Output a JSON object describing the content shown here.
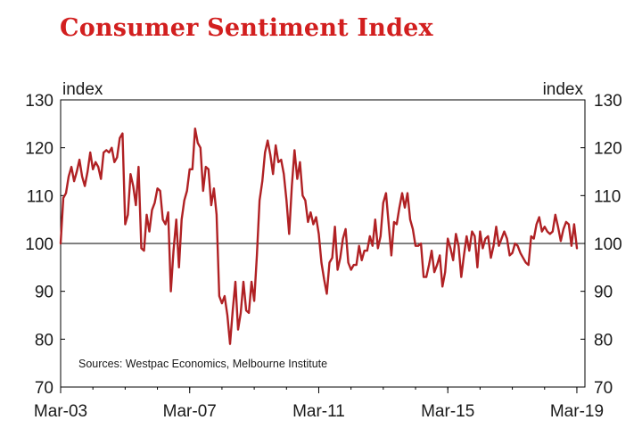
{
  "title": "Consumer Sentiment Index",
  "chart_data": {
    "type": "line",
    "title": "Consumer Sentiment Index",
    "ylabel_left": "index",
    "ylabel_right": "index",
    "ylim": [
      70,
      130
    ],
    "yticks": [
      70,
      80,
      90,
      100,
      110,
      120,
      130
    ],
    "xlim": [
      "2003-03",
      "2019-06"
    ],
    "xtick_labels": [
      "Mar-03",
      "Mar-07",
      "Mar-11",
      "Mar-15",
      "Mar-19"
    ],
    "xtick_values": [
      "2003-03",
      "2007-03",
      "2011-03",
      "2015-03",
      "2019-03"
    ],
    "reference_line": 100,
    "source_note": "Sources: Westpac Economics, Melbourne Institute",
    "grid": false,
    "colors": {
      "series": "#b02124",
      "title": "#d21f1f",
      "axis": "#000000"
    },
    "series": [
      {
        "x_start": "2003-03",
        "frequency": "monthly",
        "values": [
          100,
          109.5,
          110.5,
          114,
          116,
          113,
          115,
          117.5,
          114,
          112,
          115,
          119,
          115.5,
          117,
          116,
          113.5,
          119,
          119.5,
          119,
          120,
          117,
          118,
          122,
          123,
          104,
          106,
          114.5,
          112,
          108,
          116,
          99,
          98.5,
          106,
          102.5,
          107,
          108.5,
          111.5,
          111,
          105,
          104,
          106.5,
          90,
          98.5,
          105,
          95,
          105,
          109,
          111,
          115.5,
          115.5,
          124,
          121,
          120,
          111,
          116,
          115.5,
          108,
          111.5,
          106,
          89,
          87.5,
          89,
          85,
          79,
          86,
          92,
          82,
          85.5,
          92,
          86,
          85.5,
          92,
          88,
          97.5,
          109,
          113,
          119,
          121.5,
          118.5,
          114.5,
          120.5,
          117,
          117.5,
          114.5,
          109,
          102,
          112,
          119.5,
          113.5,
          117,
          110,
          109,
          104.5,
          106.5,
          104,
          105.5,
          102,
          96,
          92.5,
          89.5,
          96,
          97,
          103.5,
          94.5,
          97,
          101,
          103,
          96,
          94.5,
          95.5,
          95.5,
          99.5,
          96.5,
          98.5,
          98.5,
          101.5,
          99.5,
          105,
          99,
          101.5,
          108.5,
          110.5,
          104,
          97.5,
          104.5,
          104,
          107.5,
          110.5,
          107.5,
          110.5,
          105,
          103,
          99.5,
          99.5,
          100,
          93,
          93,
          95.5,
          98.5,
          94,
          95.5,
          97.5,
          91,
          94,
          101,
          99,
          96.5,
          102,
          99.5,
          93,
          97.5,
          101.5,
          98.5,
          102.5,
          101.5,
          95,
          102.5,
          99,
          101,
          101.5,
          97,
          99.5,
          103.5,
          99.5,
          101,
          102.5,
          101,
          97.5,
          98,
          100,
          99.5,
          98,
          97,
          96,
          95.5,
          101.5,
          101,
          104,
          105.5,
          102.5,
          103.5,
          102.5,
          102,
          102.5,
          106,
          103.5,
          100.5,
          103,
          104.5,
          104,
          99.5,
          104,
          99
        ]
      }
    ]
  }
}
